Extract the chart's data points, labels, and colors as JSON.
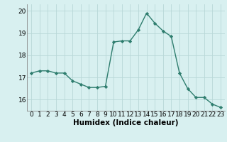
{
  "x": [
    0,
    1,
    2,
    3,
    4,
    5,
    6,
    7,
    8,
    9,
    10,
    11,
    12,
    13,
    14,
    15,
    16,
    17,
    18,
    19,
    20,
    21,
    22,
    23
  ],
  "y": [
    17.2,
    17.3,
    17.3,
    17.2,
    17.2,
    16.85,
    16.7,
    16.55,
    16.55,
    16.6,
    18.6,
    18.65,
    18.65,
    19.15,
    19.9,
    19.45,
    19.1,
    18.85,
    17.2,
    16.5,
    16.1,
    16.1,
    15.8,
    15.65
  ],
  "line_color": "#2e7d6e",
  "marker": "D",
  "markersize": 2.2,
  "bg_color": "#d8f0f0",
  "grid_color": "#b8d8d8",
  "xlabel": "Humidex (Indice chaleur)",
  "xlabel_fontsize": 7.5,
  "ylim": [
    15.5,
    20.3
  ],
  "xlim": [
    -0.5,
    23.5
  ],
  "yticks": [
    16,
    17,
    18,
    19,
    20
  ],
  "xticks": [
    0,
    1,
    2,
    3,
    4,
    5,
    6,
    7,
    8,
    9,
    10,
    11,
    12,
    13,
    14,
    15,
    16,
    17,
    18,
    19,
    20,
    21,
    22,
    23
  ],
  "xtick_labels": [
    "0",
    "1",
    "2",
    "3",
    "4",
    "5",
    "6",
    "7",
    "8",
    "9",
    "10",
    "11",
    "12",
    "13",
    "14",
    "15",
    "16",
    "17",
    "18",
    "19",
    "20",
    "21",
    "22",
    "23"
  ],
  "tick_fontsize": 6.5,
  "linewidth": 1.0
}
